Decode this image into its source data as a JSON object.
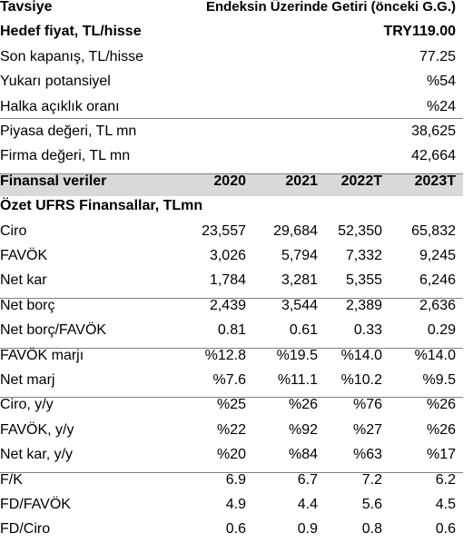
{
  "summary": {
    "rows": [
      [
        "Tavsiye",
        "Endeksin Üzerinde Getiri (önceki G.G.)"
      ],
      [
        "Hedef fiyat, TL/hisse",
        "TRY119.00"
      ],
      [
        "Son kapanış, TL/hisse",
        "77.25"
      ],
      [
        "Yukarı potansiyel",
        "%54"
      ],
      [
        "Halka açıklık oranı",
        "%24"
      ],
      [
        "Piyasa değeri, TL mn",
        "38,625"
      ],
      [
        "Firma değeri, TL mn",
        "42,664"
      ]
    ]
  },
  "financials": {
    "header": [
      "Finansal veriler",
      "2020",
      "2021",
      "2022T",
      "2023T"
    ],
    "section": "Özet UFRS Finansallar, TLmn",
    "groups": [
      [
        [
          "Ciro",
          "23,557",
          "29,684",
          "52,350",
          "65,832"
        ],
        [
          "FAVÖK",
          "3,026",
          "5,794",
          "7,332",
          "9,245"
        ],
        [
          "Net kar",
          "1,784",
          "3,281",
          "5,355",
          "6,246"
        ]
      ],
      [
        [
          "Net borç",
          "2,439",
          "3,544",
          "2,389",
          "2,636"
        ],
        [
          "Net borç/FAVÖK",
          "0.81",
          "0.61",
          "0.33",
          "0.29"
        ]
      ],
      [
        [
          "FAVÖK marjı",
          "%12.8",
          "%19.5",
          "%14.0",
          "%14.0"
        ],
        [
          "Net marj",
          "%7.6",
          "%11.1",
          "%10.2",
          "%9.5"
        ]
      ],
      [
        [
          "Ciro, y/y",
          "%25",
          "%26",
          "%76",
          "%26"
        ],
        [
          "FAVÖK, y/y",
          "%22",
          "%92",
          "%27",
          "%26"
        ],
        [
          "Net kar, y/y",
          "%20",
          "%84",
          "%63",
          "%17"
        ]
      ],
      [
        [
          "F/K",
          "6.9",
          "6.7",
          "7.2",
          "6.2"
        ],
        [
          "FD/FAVÖK",
          "4.9",
          "4.4",
          "5.6",
          "4.5"
        ],
        [
          "FD/Ciro",
          "0.6",
          "0.9",
          "0.8",
          "0.6"
        ]
      ]
    ]
  }
}
